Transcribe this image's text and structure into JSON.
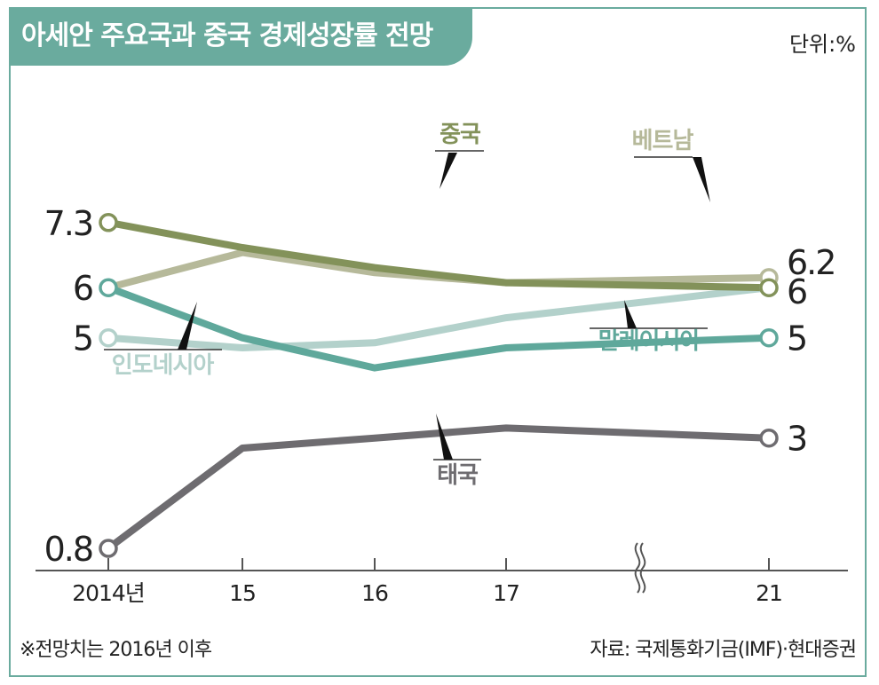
{
  "header": {
    "title": "아세안 주요국과 중국 경제성장률 전망",
    "unit": "단위:%"
  },
  "footer": {
    "note": "※전망치는 2016년 이후",
    "source": "자료:  국제통화기금(IMF)·현대증권"
  },
  "colors": {
    "accent": "#6aab9e",
    "china": "#83925a",
    "vietnam": "#b6b99a",
    "malaysia": "#5fa89b",
    "indonesia": "#b3d1cb",
    "thailand": "#6e6c70"
  },
  "chart_data": {
    "type": "line",
    "title": "아세안 주요국과 중국 경제성장률 전망",
    "unit": "단위:%",
    "x": [
      "2014",
      "2015",
      "2016",
      "2017",
      "2021"
    ],
    "x_tick_labels": [
      "2014년",
      "15",
      "16",
      "17",
      "21"
    ],
    "axis_break_between": [
      "17",
      "21"
    ],
    "ylim": [
      0,
      8
    ],
    "grid": false,
    "series": [
      {
        "name": "중국",
        "color": "#83925a",
        "values": [
          7.3,
          6.8,
          6.4,
          6.1,
          6.0
        ],
        "label_start": "7.3",
        "label_end": "6"
      },
      {
        "name": "베트남",
        "color": "#b6b99a",
        "values": [
          6.0,
          6.7,
          6.3,
          6.1,
          6.2
        ],
        "label_start": "",
        "label_end": "6.2"
      },
      {
        "name": "말레이시아",
        "color": "#5fa89b",
        "values": [
          6.0,
          5.0,
          4.4,
          4.8,
          5.0
        ],
        "label_start": "6",
        "label_end": "5"
      },
      {
        "name": "인도네시아",
        "color": "#b3d1cb",
        "values": [
          5.0,
          4.8,
          4.9,
          5.4,
          6.0
        ],
        "label_start": "5",
        "label_end": ""
      },
      {
        "name": "태국",
        "color": "#6e6c70",
        "values": [
          0.8,
          2.8,
          3.0,
          3.2,
          3.0
        ],
        "label_start": "0.8",
        "label_end": "3"
      }
    ]
  }
}
